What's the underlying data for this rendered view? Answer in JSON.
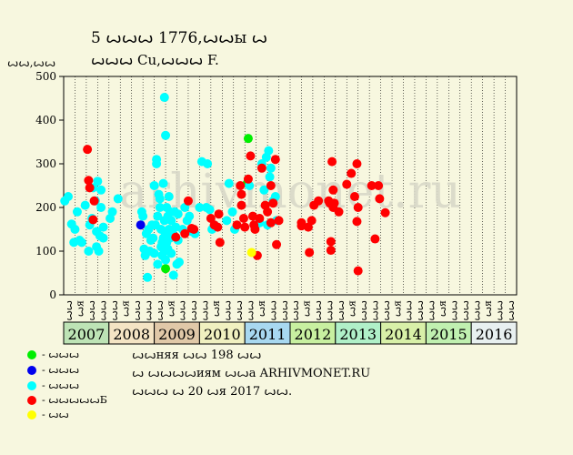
{
  "title_line1": "5 ꙍꙍꙍ 1776,ꙍꙍы ꙍ",
  "title_line2": "ꙍꙍꙍ Cu,ꙍꙍꙍ F.",
  "legend": [
    {
      "label": "- ꙍꙍꙍ",
      "color": "#00ee00"
    },
    {
      "label": "- ꙍꙍꙍ",
      "color": "#0000ee"
    },
    {
      "label": "- ꙍꙍꙍ",
      "color": "#00ffff"
    },
    {
      "label": "- ꙍꙍꙍꙍꙍБ",
      "color": "#ff0000"
    },
    {
      "label": "- ꙍꙍ",
      "color": "#ffff00"
    }
  ],
  "notes": [
    "ꙍꙍняя ꙍꙍ 198 ꙍꙍ",
    "ꙍ ꙍꙍꙍꙍиям ꙍꙍа ARHIVMONET.RU",
    "ꙍꙍꙍ ꙍ 20 ꙍя 2017 ꙍꙍ."
  ],
  "watermark": "arhivmonet.ru",
  "chart_data": {
    "type": "scatter",
    "ylabel": "ꙍꙍ,ꙍꙍ",
    "ylim": [
      0,
      500
    ],
    "yticks": [
      0,
      100,
      200,
      300,
      400,
      500
    ],
    "quarter_labels": [
      "ꙍꙍ",
      "ꙍя",
      "ꙍꙍ",
      "ꙍꙍ"
    ],
    "years": [
      "2007",
      "2008",
      "2009",
      "2010",
      "2011",
      "2012",
      "2013",
      "2014",
      "2015",
      "2016"
    ],
    "year_colors": [
      "#bde3b5",
      "#f4e4c4",
      "#e0c8a8",
      "#f0f0c0",
      "#a8d8f0",
      "#c8f0a0",
      "#b0f0c8",
      "#d8f0a8",
      "#c0f0b0",
      "#e8f0f0"
    ],
    "x_unit": "quarter index from 2007 Q1",
    "series": [
      {
        "name": "- ꙍꙍꙍ",
        "color": "#00ee00",
        "points": [
          [
            9.0,
            60
          ],
          [
            16.3,
            358
          ],
          [
            16.2,
            255
          ]
        ]
      },
      {
        "name": "- ꙍꙍꙍ",
        "color": "#0000ee",
        "points": [
          [
            6.8,
            160
          ]
        ]
      },
      {
        "name": "- ꙍꙍꙍ",
        "color": "#00ffff",
        "points": [
          [
            0.1,
            215
          ],
          [
            0.4,
            225
          ],
          [
            0.7,
            162
          ],
          [
            0.9,
            120
          ],
          [
            1.0,
            150
          ],
          [
            1.2,
            190
          ],
          [
            1.4,
            125
          ],
          [
            1.6,
            120
          ],
          [
            1.9,
            205
          ],
          [
            2.2,
            100
          ],
          [
            2.3,
            160
          ],
          [
            2.5,
            175
          ],
          [
            2.6,
            245
          ],
          [
            2.8,
            215
          ],
          [
            2.9,
            110
          ],
          [
            2.9,
            145
          ],
          [
            3.0,
            260
          ],
          [
            3.1,
            100
          ],
          [
            3.2,
            135
          ],
          [
            3.3,
            200
          ],
          [
            3.3,
            240
          ],
          [
            3.5,
            155
          ],
          [
            3.5,
            130
          ],
          [
            4.1,
            175
          ],
          [
            4.3,
            190
          ],
          [
            4.8,
            220
          ],
          [
            6.9,
            190
          ],
          [
            7.0,
            180
          ],
          [
            7.1,
            105
          ],
          [
            7.2,
            90
          ],
          [
            7.3,
            140
          ],
          [
            7.4,
            40
          ],
          [
            7.5,
            150
          ],
          [
            7.6,
            100
          ],
          [
            7.7,
            125
          ],
          [
            7.8,
            160
          ],
          [
            7.9,
            130
          ],
          [
            8.0,
            95
          ],
          [
            8.0,
            250
          ],
          [
            8.1,
            160
          ],
          [
            8.2,
            300
          ],
          [
            8.2,
            310
          ],
          [
            8.3,
            70
          ],
          [
            8.3,
            180
          ],
          [
            8.4,
            230
          ],
          [
            8.5,
            220
          ],
          [
            8.5,
            200
          ],
          [
            8.6,
            150
          ],
          [
            8.6,
            110
          ],
          [
            8.7,
            120
          ],
          [
            8.7,
            90
          ],
          [
            8.8,
            255
          ],
          [
            8.8,
            130
          ],
          [
            8.9,
            452
          ],
          [
            8.9,
            170
          ],
          [
            8.9,
            100
          ],
          [
            9.0,
            365
          ],
          [
            9.0,
            140
          ],
          [
            9.0,
            80
          ],
          [
            9.1,
            200
          ],
          [
            9.1,
            120
          ],
          [
            9.2,
            180
          ],
          [
            9.2,
            105
          ],
          [
            9.3,
            150
          ],
          [
            9.3,
            225
          ],
          [
            9.4,
            190
          ],
          [
            9.4,
            130
          ],
          [
            9.5,
            95
          ],
          [
            9.5,
            170
          ],
          [
            9.6,
            140
          ],
          [
            9.7,
            45
          ],
          [
            9.8,
            190
          ],
          [
            9.9,
            155
          ],
          [
            10.0,
            70
          ],
          [
            10.1,
            125
          ],
          [
            10.1,
            185
          ],
          [
            10.2,
            75
          ],
          [
            10.5,
            150
          ],
          [
            10.7,
            200
          ],
          [
            10.9,
            170
          ],
          [
            11.1,
            180
          ],
          [
            11.3,
            145
          ],
          [
            11.6,
            140
          ],
          [
            12.0,
            200
          ],
          [
            12.2,
            305
          ],
          [
            12.6,
            200
          ],
          [
            12.7,
            300
          ],
          [
            12.9,
            195
          ],
          [
            13.1,
            150
          ],
          [
            13.3,
            160
          ],
          [
            14.4,
            170
          ],
          [
            14.6,
            255
          ],
          [
            14.9,
            190
          ],
          [
            15.1,
            150
          ],
          [
            16.4,
            250
          ],
          [
            17.0,
            160
          ],
          [
            17.3,
            165
          ],
          [
            17.5,
            300
          ],
          [
            17.7,
            240
          ],
          [
            17.9,
            315
          ],
          [
            18.0,
            160
          ],
          [
            18.1,
            330
          ],
          [
            18.2,
            270
          ],
          [
            18.3,
            290
          ],
          [
            18.5,
            215
          ],
          [
            18.7,
            225
          ],
          [
            18.8,
            170
          ]
        ]
      },
      {
        "name": "- ꙍꙍꙍꙍꙍБ",
        "color": "#ff0000",
        "points": [
          [
            2.1,
            333
          ],
          [
            2.2,
            262
          ],
          [
            2.3,
            245
          ],
          [
            2.6,
            172
          ],
          [
            2.7,
            215
          ],
          [
            9.9,
            132
          ],
          [
            10.7,
            140
          ],
          [
            11.0,
            215
          ],
          [
            11.3,
            152
          ],
          [
            11.5,
            150
          ],
          [
            13.0,
            175
          ],
          [
            13.3,
            160
          ],
          [
            13.6,
            155
          ],
          [
            13.7,
            185
          ],
          [
            13.8,
            120
          ],
          [
            15.3,
            160
          ],
          [
            15.6,
            250
          ],
          [
            15.7,
            230
          ],
          [
            15.7,
            205
          ],
          [
            15.9,
            175
          ],
          [
            16.0,
            155
          ],
          [
            16.3,
            265
          ],
          [
            16.5,
            318
          ],
          [
            16.7,
            180
          ],
          [
            16.8,
            160
          ],
          [
            16.9,
            150
          ],
          [
            17.1,
            90
          ],
          [
            17.3,
            175
          ],
          [
            17.5,
            290
          ],
          [
            17.8,
            205
          ],
          [
            18.0,
            190
          ],
          [
            18.3,
            165
          ],
          [
            18.3,
            250
          ],
          [
            18.5,
            210
          ],
          [
            18.7,
            310
          ],
          [
            18.8,
            115
          ],
          [
            19.0,
            170
          ],
          [
            21.0,
            165
          ],
          [
            21.0,
            158
          ],
          [
            21.6,
            155
          ],
          [
            21.7,
            97
          ],
          [
            21.9,
            170
          ],
          [
            22.1,
            205
          ],
          [
            22.5,
            215
          ],
          [
            23.4,
            215
          ],
          [
            23.5,
            210
          ],
          [
            23.6,
            122
          ],
          [
            23.6,
            102
          ],
          [
            23.7,
            305
          ],
          [
            23.8,
            200
          ],
          [
            23.8,
            240
          ],
          [
            23.9,
            210
          ],
          [
            24.3,
            190
          ],
          [
            25.0,
            253
          ],
          [
            25.4,
            278
          ],
          [
            25.7,
            225
          ],
          [
            25.9,
            300
          ],
          [
            25.9,
            168
          ],
          [
            26.0,
            200
          ],
          [
            26.0,
            55
          ],
          [
            27.2,
            250
          ],
          [
            27.5,
            128
          ],
          [
            27.8,
            250
          ],
          [
            27.9,
            220
          ],
          [
            28.4,
            188
          ]
        ]
      },
      {
        "name": "- ꙍꙍ",
        "color": "#ffff00",
        "points": [
          [
            16.6,
            97
          ]
        ]
      }
    ]
  }
}
